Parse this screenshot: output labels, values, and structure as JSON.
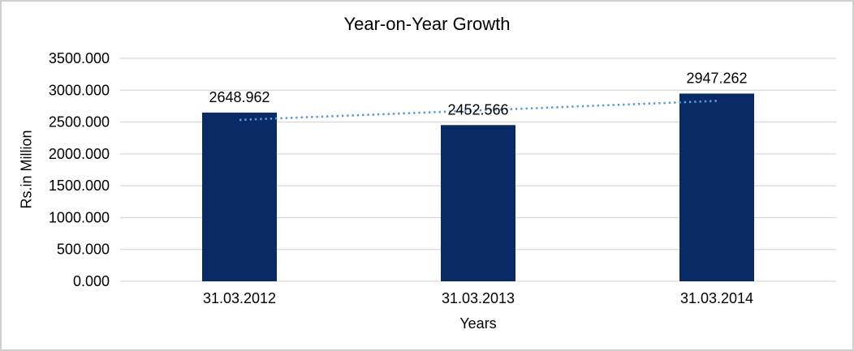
{
  "frame": {
    "background": "#ffffff",
    "border_color": "#cfcfcf"
  },
  "chart_data": {
    "type": "bar",
    "title": "Year-on-Year Growth",
    "xlabel": "Years",
    "ylabel": "Rs.in Million",
    "categories": [
      "31.03.2012",
      "31.03.2013",
      "31.03.2014"
    ],
    "values": [
      2648.962,
      2452.566,
      2947.262
    ],
    "value_labels": [
      "2648.962",
      "2452.566",
      "2947.262"
    ],
    "ylim": [
      0,
      3500
    ],
    "ytick_step": 500,
    "ytick_labels": [
      "3500.000",
      "3000.000",
      "2500.000",
      "2000.000",
      "1500.000",
      "1000.000",
      "500.000",
      "0.000"
    ],
    "grid": "horizontal",
    "legend": "none",
    "trendline": {
      "type": "linear",
      "style": "dotted",
      "values": [
        2533.8,
        2682.9,
        2832.1
      ]
    },
    "colors": {
      "bar": "#0a2a66",
      "trendline": "#5b9bd5",
      "gridline": "#d9d9d9",
      "text": "#000000"
    }
  }
}
